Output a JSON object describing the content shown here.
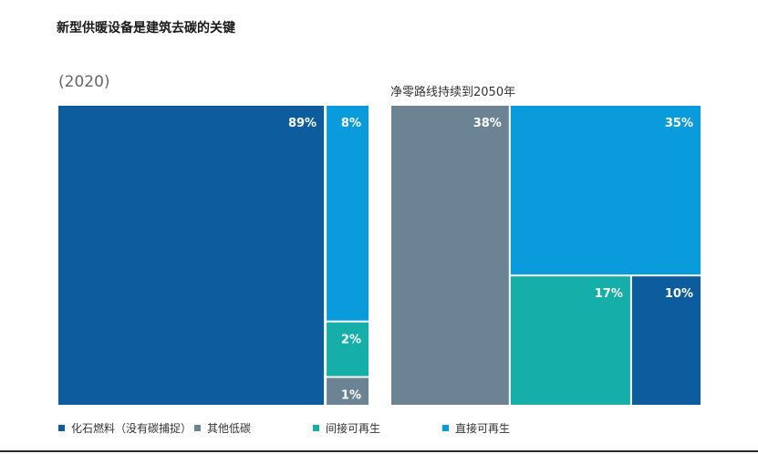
{
  "title": "新型供暖设备是建筑去碳的关键",
  "colors": {
    "fossil": "#0d5c9e",
    "other_low_carbon": "#6c8393",
    "indirect_renewable": "#15aea8",
    "direct_renewable": "#0a9bdc",
    "label": "#ffffff"
  },
  "legend": [
    {
      "key": "fossil",
      "label": "化石燃料（没有碳捕捉）"
    },
    {
      "key": "other_low_carbon",
      "label": "其他低碳"
    },
    {
      "key": "indirect_renewable",
      "label": "间接可再生"
    },
    {
      "key": "direct_renewable",
      "label": "直接可再生"
    }
  ],
  "chart_data": [
    {
      "type": "treemap",
      "title": "(2020)",
      "unit": "%",
      "items": [
        {
          "key": "fossil",
          "label": "化石燃料（没有碳捕捉）",
          "value": 89,
          "display": "89%"
        },
        {
          "key": "direct_renewable",
          "label": "直接可再生",
          "value": 8,
          "display": "8%"
        },
        {
          "key": "indirect_renewable",
          "label": "间接可再生",
          "value": 2,
          "display": "2%"
        },
        {
          "key": "other_low_carbon",
          "label": "其他低碳",
          "value": 1,
          "display": "1%"
        }
      ]
    },
    {
      "type": "treemap",
      "title": "净零路线持续到2050年",
      "unit": "%",
      "items": [
        {
          "key": "other_low_carbon",
          "label": "其他低碳",
          "value": 38,
          "display": "38%"
        },
        {
          "key": "direct_renewable",
          "label": "直接可再生",
          "value": 35,
          "display": "35%"
        },
        {
          "key": "indirect_renewable",
          "label": "间接可再生",
          "value": 17,
          "display": "17%"
        },
        {
          "key": "fossil",
          "label": "化石燃料（没有碳捕捉）",
          "value": 10,
          "display": "10%"
        }
      ]
    }
  ]
}
